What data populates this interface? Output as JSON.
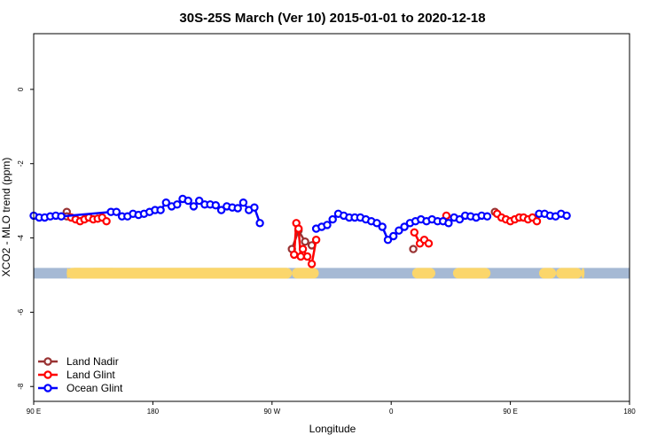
{
  "chart_data": {
    "type": "line",
    "title": "30S-25S March (Ver 10)   2015-01-01 to 2020-12-18",
    "xlabel": "Longitude",
    "ylabel": "XCO2 - MLO trend (ppm)",
    "xlim": [
      -90,
      180
    ],
    "ylim": [
      -8.4,
      1.5
    ],
    "x_ticks": [
      {
        "value": -90,
        "label": "90 E"
      },
      {
        "value": -36,
        "label": "180"
      },
      {
        "value": 18,
        "label": "90 W"
      },
      {
        "value": 72,
        "label": "0"
      },
      {
        "value": 126,
        "label": "90 E"
      },
      {
        "value": 180,
        "label": "180"
      }
    ],
    "y_ticks": [
      {
        "value": 0,
        "label": "0"
      },
      {
        "value": -2,
        "label": "-2"
      },
      {
        "value": -4,
        "label": "-4"
      },
      {
        "value": -6,
        "label": "-6"
      },
      {
        "value": -8,
        "label": "-8"
      }
    ],
    "legend_position": "bottom-left",
    "band": {
      "y": -4.95,
      "ocean_color": "#a5b9d4",
      "land_color": "#fbd66b",
      "land_segments": [
        [
          -75,
          -74
        ],
        [
          -75,
          -66.5
        ],
        [
          -50.7,
          -49.7
        ],
        [
          -49.7,
          -48.3
        ],
        [
          -48.3,
          -48.3
        ],
        [
          -48.3,
          -47.5
        ],
        [
          -65,
          -52
        ],
        [
          27,
          -74
        ],
        [
          27,
          39.2
        ],
        [
          -74,
          27
        ],
        [
          81.5,
          92
        ],
        [
          117,
          100
        ],
        [
          109.6,
          110
        ],
        [
          158.2,
          159.6
        ],
        [
          139,
          146.7
        ],
        [
          146.7,
          158.5
        ]
      ]
    },
    "series": [
      {
        "name": "Land Nadir",
        "color": "#993333",
        "points": [
          [
            -75,
            -3.3
          ],
          [
            -75,
            -3.42
          ],
          [
            27,
            -4.3
          ],
          [
            30,
            -3.8
          ],
          [
            33,
            -4.1
          ],
          [
            36,
            -4.2
          ],
          [
            82,
            -4.3
          ],
          [
            119,
            -3.3
          ]
        ],
        "segments": [
          [
            [
              27,
              -4.3
            ],
            [
              30,
              -3.8
            ],
            [
              33,
              -4.1
            ],
            [
              36,
              -4.2
            ]
          ]
        ]
      },
      {
        "name": "Land Glint",
        "color": "#ff0000",
        "points": [
          [
            -73,
            -3.45
          ],
          [
            -71,
            -3.5
          ],
          [
            -69,
            -3.55
          ],
          [
            -67,
            -3.5
          ],
          [
            -65,
            -3.45
          ],
          [
            -63,
            -3.5
          ],
          [
            -61,
            -3.48
          ],
          [
            -59,
            -3.45
          ],
          [
            -57,
            -3.55
          ],
          [
            28,
            -4.45
          ],
          [
            29,
            -3.6
          ],
          [
            30,
            -3.75
          ],
          [
            31,
            -4.5
          ],
          [
            32,
            -4.3
          ],
          [
            34,
            -4.5
          ],
          [
            36,
            -4.7
          ],
          [
            38,
            -4.05
          ],
          [
            82.5,
            -3.85
          ],
          [
            85,
            -4.15
          ],
          [
            87,
            -4.05
          ],
          [
            89,
            -4.15
          ],
          [
            97,
            -3.4
          ],
          [
            120,
            -3.35
          ],
          [
            122,
            -3.45
          ],
          [
            124,
            -3.5
          ],
          [
            126,
            -3.55
          ],
          [
            128,
            -3.5
          ],
          [
            130,
            -3.45
          ],
          [
            132,
            -3.45
          ],
          [
            134,
            -3.5
          ],
          [
            136,
            -3.45
          ],
          [
            138,
            -3.55
          ]
        ],
        "segments": [
          [
            [
              -73,
              -3.45
            ],
            [
              -71,
              -3.5
            ],
            [
              -69,
              -3.55
            ],
            [
              -67,
              -3.5
            ],
            [
              -65,
              -3.45
            ],
            [
              -63,
              -3.5
            ],
            [
              -61,
              -3.48
            ],
            [
              -59,
              -3.45
            ],
            [
              -57,
              -3.55
            ]
          ],
          [
            [
              28,
              -4.45
            ],
            [
              29,
              -3.6
            ],
            [
              30,
              -3.75
            ],
            [
              31,
              -4.5
            ],
            [
              32,
              -4.3
            ],
            [
              34,
              -4.5
            ],
            [
              36,
              -4.7
            ],
            [
              38,
              -4.05
            ]
          ],
          [
            [
              82.5,
              -3.85
            ],
            [
              85,
              -4.15
            ],
            [
              87,
              -4.05
            ],
            [
              89,
              -4.15
            ]
          ],
          [
            [
              120,
              -3.35
            ],
            [
              122,
              -3.45
            ],
            [
              124,
              -3.5
            ],
            [
              126,
              -3.55
            ],
            [
              128,
              -3.5
            ],
            [
              130,
              -3.45
            ],
            [
              132,
              -3.45
            ],
            [
              134,
              -3.5
            ],
            [
              136,
              -3.45
            ],
            [
              138,
              -3.55
            ]
          ]
        ]
      },
      {
        "name": "Ocean Glint",
        "color": "#0000ff",
        "points": [
          [
            -90,
            -3.4
          ],
          [
            -87.5,
            -3.45
          ],
          [
            -85,
            -3.45
          ],
          [
            -82.5,
            -3.42
          ],
          [
            -80,
            -3.4
          ],
          [
            -77.5,
            -3.42
          ],
          [
            -55,
            -3.3
          ],
          [
            -52.5,
            -3.3
          ],
          [
            -50,
            -3.42
          ],
          [
            -47.5,
            -3.42
          ],
          [
            -45,
            -3.35
          ],
          [
            -42.5,
            -3.38
          ],
          [
            -40,
            -3.35
          ],
          [
            -37.5,
            -3.3
          ],
          [
            -35,
            -3.25
          ],
          [
            -32.5,
            -3.25
          ],
          [
            -30,
            -3.05
          ],
          [
            -27.5,
            -3.15
          ],
          [
            -25,
            -3.1
          ],
          [
            -22.5,
            -2.95
          ],
          [
            -20,
            -3.0
          ],
          [
            -17.5,
            -3.15
          ],
          [
            -15,
            -3.0
          ],
          [
            -12.5,
            -3.1
          ],
          [
            -10,
            -3.1
          ],
          [
            -7.5,
            -3.12
          ],
          [
            -5,
            -3.25
          ],
          [
            -2.5,
            -3.15
          ],
          [
            0,
            -3.18
          ],
          [
            2.5,
            -3.2
          ],
          [
            5,
            -3.05
          ],
          [
            7.5,
            -3.25
          ],
          [
            10,
            -3.18
          ],
          [
            12.5,
            -3.6
          ],
          [
            38,
            -3.75
          ],
          [
            40.5,
            -3.7
          ],
          [
            43,
            -3.65
          ],
          [
            45.5,
            -3.5
          ],
          [
            48,
            -3.35
          ],
          [
            50.5,
            -3.4
          ],
          [
            53,
            -3.45
          ],
          [
            55.5,
            -3.45
          ],
          [
            58,
            -3.45
          ],
          [
            60.5,
            -3.5
          ],
          [
            63,
            -3.55
          ],
          [
            65.5,
            -3.6
          ],
          [
            68,
            -3.7
          ],
          [
            70.5,
            -4.05
          ],
          [
            73,
            -3.95
          ],
          [
            75.5,
            -3.8
          ],
          [
            78,
            -3.7
          ],
          [
            80.5,
            -3.6
          ],
          [
            83,
            -3.55
          ],
          [
            85.5,
            -3.5
          ],
          [
            88,
            -3.55
          ],
          [
            90.5,
            -3.5
          ],
          [
            93,
            -3.55
          ],
          [
            95.5,
            -3.55
          ],
          [
            98,
            -3.6
          ],
          [
            100.5,
            -3.45
          ],
          [
            103,
            -3.5
          ],
          [
            105.5,
            -3.4
          ],
          [
            108,
            -3.42
          ],
          [
            110.5,
            -3.45
          ],
          [
            113,
            -3.4
          ],
          [
            115.5,
            -3.42
          ],
          [
            139,
            -3.35
          ],
          [
            141.5,
            -3.35
          ],
          [
            144,
            -3.4
          ],
          [
            146.5,
            -3.42
          ],
          [
            149,
            -3.35
          ],
          [
            151.5,
            -3.4
          ]
        ],
        "segments": [
          [
            [
              -90,
              -3.4
            ],
            [
              -87.5,
              -3.45
            ],
            [
              -85,
              -3.45
            ],
            [
              -82.5,
              -3.42
            ],
            [
              -80,
              -3.4
            ],
            [
              -77.5,
              -3.42
            ],
            [
              -55,
              -3.3
            ],
            [
              -52.5,
              -3.3
            ],
            [
              -50,
              -3.42
            ],
            [
              -47.5,
              -3.42
            ],
            [
              -45,
              -3.35
            ],
            [
              -42.5,
              -3.38
            ],
            [
              -40,
              -3.35
            ],
            [
              -37.5,
              -3.3
            ],
            [
              -35,
              -3.25
            ],
            [
              -32.5,
              -3.25
            ],
            [
              -30,
              -3.05
            ],
            [
              -27.5,
              -3.15
            ],
            [
              -25,
              -3.1
            ],
            [
              -22.5,
              -2.95
            ],
            [
              -20,
              -3.0
            ],
            [
              -17.5,
              -3.15
            ],
            [
              -15,
              -3.0
            ],
            [
              -12.5,
              -3.1
            ],
            [
              -10,
              -3.1
            ],
            [
              -7.5,
              -3.12
            ],
            [
              -5,
              -3.25
            ],
            [
              -2.5,
              -3.15
            ],
            [
              0,
              -3.18
            ],
            [
              2.5,
              -3.2
            ],
            [
              5,
              -3.05
            ],
            [
              7.5,
              -3.25
            ],
            [
              10,
              -3.18
            ],
            [
              12.5,
              -3.6
            ]
          ],
          [
            [
              38,
              -3.75
            ],
            [
              40.5,
              -3.7
            ],
            [
              43,
              -3.65
            ],
            [
              45.5,
              -3.5
            ],
            [
              48,
              -3.35
            ],
            [
              50.5,
              -3.4
            ],
            [
              53,
              -3.45
            ],
            [
              55.5,
              -3.45
            ],
            [
              58,
              -3.45
            ],
            [
              60.5,
              -3.5
            ],
            [
              63,
              -3.55
            ],
            [
              65.5,
              -3.6
            ],
            [
              68,
              -3.7
            ],
            [
              70.5,
              -4.05
            ]
          ],
          [
            [
              73,
              -3.95
            ],
            [
              75.5,
              -3.8
            ],
            [
              78,
              -3.7
            ],
            [
              80.5,
              -3.6
            ],
            [
              83,
              -3.55
            ],
            [
              85.5,
              -3.5
            ],
            [
              88,
              -3.55
            ],
            [
              90.5,
              -3.5
            ],
            [
              93,
              -3.55
            ],
            [
              95.5,
              -3.55
            ],
            [
              98,
              -3.6
            ],
            [
              100.5,
              -3.45
            ],
            [
              103,
              -3.5
            ],
            [
              105.5,
              -3.4
            ],
            [
              108,
              -3.42
            ],
            [
              110.5,
              -3.45
            ],
            [
              113,
              -3.4
            ],
            [
              115.5,
              -3.42
            ]
          ],
          [
            [
              139,
              -3.35
            ],
            [
              141.5,
              -3.35
            ],
            [
              144,
              -3.4
            ],
            [
              146.5,
              -3.42
            ],
            [
              149,
              -3.35
            ],
            [
              151.5,
              -3.4
            ]
          ]
        ]
      }
    ]
  }
}
